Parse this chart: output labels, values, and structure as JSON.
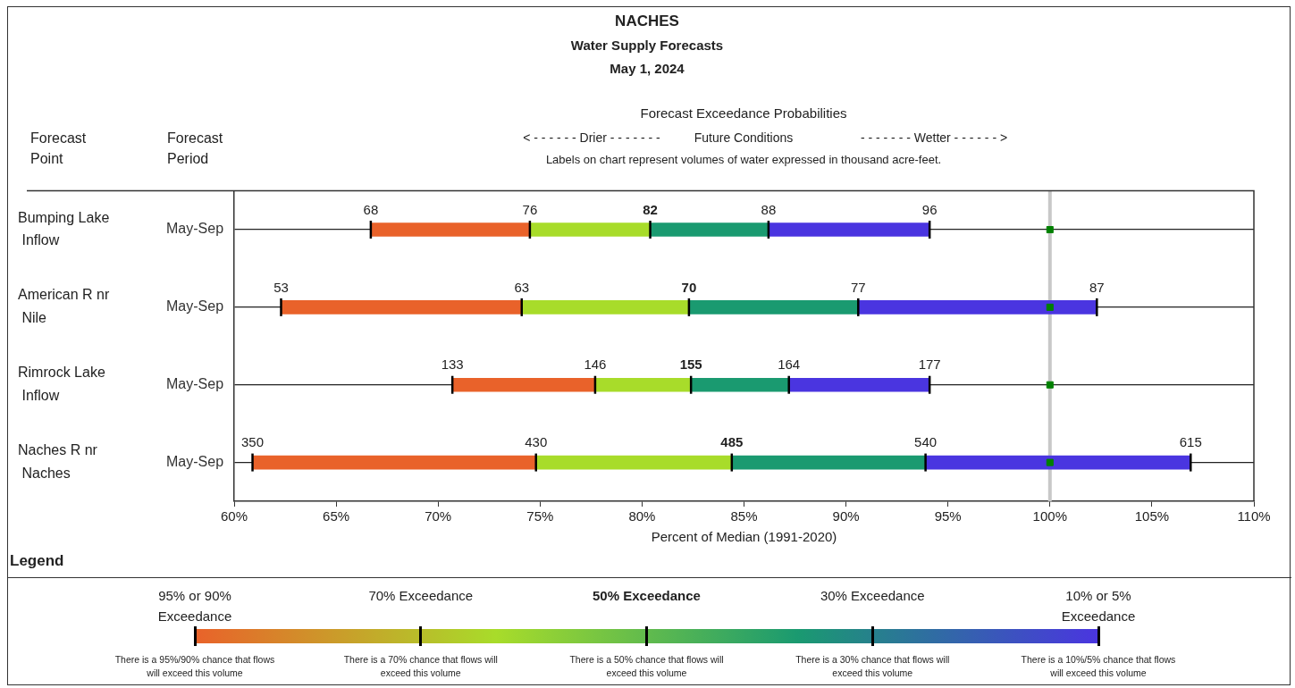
{
  "chart_data": {
    "type": "bar",
    "orientation": "horizontal",
    "title": "NACHES",
    "subtitle": "Water Supply Forecasts",
    "xlabel": "Percent of Median (1991-2020)",
    "legend_title": "Legend",
    "grid": "y",
    "categories": [
      "Bumping Lake Inflow",
      "American R nr Nile",
      "Rimrock Lake Inflow",
      "Naches R nr Naches"
    ],
    "xlim": [
      60,
      110
    ],
    "xticks": [
      {
        "value": 60,
        "label": "60%"
      },
      {
        "value": 65,
        "label": "65%"
      },
      {
        "value": 70,
        "label": "70%"
      },
      {
        "value": 75,
        "label": "75%"
      },
      {
        "value": 80,
        "label": "80%"
      },
      {
        "value": 85,
        "label": "85%"
      },
      {
        "value": 90,
        "label": "90%"
      },
      {
        "value": 95,
        "label": "95%"
      },
      {
        "value": 100,
        "label": "100%"
      },
      {
        "value": 105,
        "label": "105%"
      },
      {
        "value": 110,
        "label": "110%"
      }
    ],
    "marker": "square",
    "ref_lines": [
      {
        "axis": "x",
        "value": 100,
        "color": "#c8c8c8"
      }
    ],
    "series": [
      {
        "color": "#e9622a",
        "base": [
          66.7,
          62.3,
          70.7,
          60.9
        ],
        "values": [
          7.8,
          11.8,
          7.0,
          13.9
        ]
      },
      {
        "color": "#a8dc2a",
        "base": [
          74.5,
          74.1,
          77.7,
          74.8
        ],
        "values": [
          5.9,
          8.2,
          4.7,
          9.6
        ]
      },
      {
        "color": "#1a9a70",
        "base": [
          80.4,
          82.3,
          82.4,
          84.4
        ],
        "values": [
          5.8,
          8.3,
          4.8,
          9.5
        ]
      },
      {
        "color": "#4a35e0",
        "base": [
          86.2,
          90.6,
          87.2,
          93.9
        ],
        "values": [
          7.9,
          11.7,
          6.9,
          13.0
        ]
      },
      {
        "type": "scatter",
        "color": "#008000",
        "x": [
          "Bumping Lake Inflow",
          "American R nr Nile",
          "Rimrock Lake Inflow",
          "Naches R nr Naches"
        ],
        "values": [
          100,
          100,
          100,
          100
        ]
      }
    ],
    "annotations": [
      "May 1, 2024",
      "Forecast Point",
      "Forecast Period",
      "Forecast Exceedance Probabilities",
      "< - - - - - -  Drier  - - - - - - -",
      "Future Conditions",
      "- - - - - - -  Wetter  - - - - - - >",
      "Labels on chart represent volumes of water expressed in thousand acre-feet.",
      "May-Sep",
      "May-Sep",
      "May-Sep",
      "May-Sep",
      "95% or 90% Exceedance",
      "70% Exceedance",
      "50% Exceedance",
      "30% Exceedance",
      "10% or 5% Exceedance",
      "There is a 95%/90% chance that flows will exceed this volume",
      "There is a 70% chance that flows will exceed this volume",
      "There is a 50% chance that flows will exceed this volume",
      "There is a 30% chance that flows will exceed this volume",
      "There is a 10%/5% chance that flows will exceed this volume",
      {
        "text": "68",
        "x": 66.7,
        "y": "Bumping Lake Inflow"
      },
      {
        "text": "76",
        "x": 74.5,
        "y": "Bumping Lake Inflow"
      },
      {
        "text": "82",
        "x": 80.4,
        "y": "Bumping Lake Inflow"
      },
      {
        "text": "88",
        "x": 86.2,
        "y": "Bumping Lake Inflow"
      },
      {
        "text": "96",
        "x": 94.1,
        "y": "Bumping Lake Inflow"
      },
      {
        "text": "53",
        "x": 62.3,
        "y": "American R nr Nile"
      },
      {
        "text": "63",
        "x": 74.1,
        "y": "American R nr Nile"
      },
      {
        "text": "70",
        "x": 82.3,
        "y": "American R nr Nile"
      },
      {
        "text": "77",
        "x": 90.6,
        "y": "American R nr Nile"
      },
      {
        "text": "87",
        "x": 102.3,
        "y": "American R nr Nile"
      },
      {
        "text": "133",
        "x": 70.7,
        "y": "Rimrock Lake Inflow"
      },
      {
        "text": "146",
        "x": 77.7,
        "y": "Rimrock Lake Inflow"
      },
      {
        "text": "155",
        "x": 82.4,
        "y": "Rimrock Lake Inflow"
      },
      {
        "text": "164",
        "x": 87.2,
        "y": "Rimrock Lake Inflow"
      },
      {
        "text": "177",
        "x": 94.1,
        "y": "Rimrock Lake Inflow"
      },
      {
        "text": "350",
        "x": 60.9,
        "y": "Naches R nr Naches"
      },
      {
        "text": "430",
        "x": 74.8,
        "y": "Naches R nr Naches"
      },
      {
        "text": "485",
        "x": 84.4,
        "y": "Naches R nr Naches"
      },
      {
        "text": "540",
        "x": 93.9,
        "y": "Naches R nr Naches"
      },
      {
        "text": "615",
        "x": 106.9,
        "y": "Naches R nr Naches"
      }
    ]
  }
}
